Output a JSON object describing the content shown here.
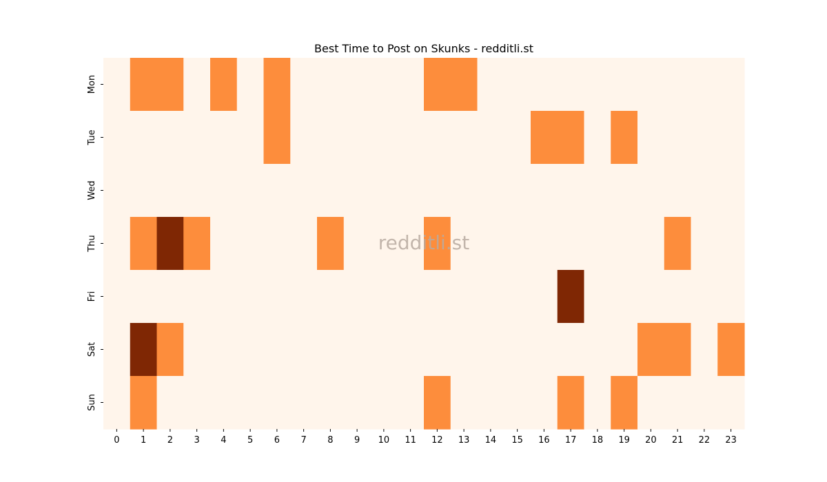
{
  "chart_data": {
    "type": "heatmap",
    "title": "Best Time to Post on Skunks - redditli.st",
    "watermark": "redditli.st",
    "x_labels": [
      "0",
      "1",
      "2",
      "3",
      "4",
      "5",
      "6",
      "7",
      "8",
      "9",
      "10",
      "11",
      "12",
      "13",
      "14",
      "15",
      "16",
      "17",
      "18",
      "19",
      "20",
      "21",
      "22",
      "23"
    ],
    "y_labels": [
      "Mon",
      "Tue",
      "Wed",
      "Thu",
      "Fri",
      "Sat",
      "Sun"
    ],
    "xlabel": "",
    "ylabel": "",
    "colorbar": false,
    "colors": {
      "0": "#fff5eb",
      "1": "#fd8d3c",
      "2": "#7f2704"
    },
    "values": [
      [
        0,
        1,
        1,
        0,
        1,
        0,
        1,
        0,
        0,
        0,
        0,
        0,
        1,
        1,
        0,
        0,
        0,
        0,
        0,
        0,
        0,
        0,
        0,
        0
      ],
      [
        0,
        0,
        0,
        0,
        0,
        0,
        1,
        0,
        0,
        0,
        0,
        0,
        0,
        0,
        0,
        0,
        1,
        1,
        0,
        1,
        0,
        0,
        0,
        0
      ],
      [
        0,
        0,
        0,
        0,
        0,
        0,
        0,
        0,
        0,
        0,
        0,
        0,
        0,
        0,
        0,
        0,
        0,
        0,
        0,
        0,
        0,
        0,
        0,
        0
      ],
      [
        0,
        1,
        2,
        1,
        0,
        0,
        0,
        0,
        1,
        0,
        0,
        0,
        1,
        0,
        0,
        0,
        0,
        0,
        0,
        0,
        0,
        1,
        0,
        0
      ],
      [
        0,
        0,
        0,
        0,
        0,
        0,
        0,
        0,
        0,
        0,
        0,
        0,
        0,
        0,
        0,
        0,
        0,
        2,
        0,
        0,
        0,
        0,
        0,
        0
      ],
      [
        0,
        2,
        1,
        0,
        0,
        0,
        0,
        0,
        0,
        0,
        0,
        0,
        0,
        0,
        0,
        0,
        0,
        0,
        0,
        0,
        1,
        1,
        0,
        1
      ],
      [
        0,
        1,
        0,
        0,
        0,
        0,
        0,
        0,
        0,
        0,
        0,
        0,
        1,
        0,
        0,
        0,
        0,
        1,
        0,
        1,
        0,
        0,
        0,
        0
      ]
    ]
  }
}
